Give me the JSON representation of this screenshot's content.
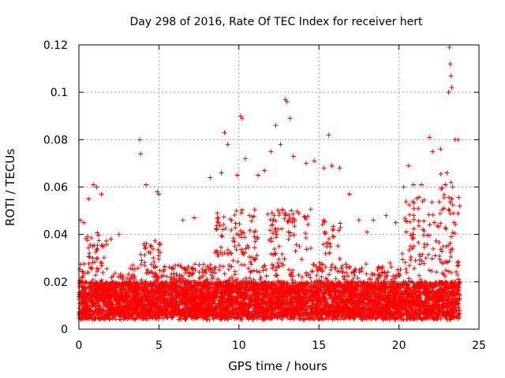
{
  "chart_data": {
    "type": "scatter",
    "title": "Day 298 of 2016, Rate Of TEC Index for receiver hert",
    "xlabel": "GPS time / hours",
    "ylabel": "ROTI / TECUs",
    "xlim": [
      0,
      25
    ],
    "ylim": [
      0,
      0.12
    ],
    "xticks": [
      "0",
      "5",
      "10",
      "15",
      "20",
      "25"
    ],
    "yticks": [
      "0",
      "0.02",
      "0.04",
      "0.06",
      "0.08",
      "0.1",
      "0.12"
    ],
    "grid": true,
    "marker": "+",
    "series": [
      {
        "name": "ROTI",
        "color": "#ff0000",
        "x": [
          0.1,
          0.3,
          0.6,
          0.9,
          1.1,
          1.4,
          3.8,
          3.85,
          4.2,
          4.9,
          5.0,
          8.2,
          8.9,
          9.1,
          9.3,
          9.9,
          10.1,
          10.2,
          10.4,
          11.2,
          11.6,
          12.0,
          12.3,
          12.6,
          12.9,
          13.0,
          13.2,
          13.4,
          14.2,
          14.7,
          15.3,
          15.6,
          15.8,
          16.3,
          16.9,
          17.5,
          18.4,
          19.2,
          20.3,
          20.6,
          20.9,
          21.4,
          21.9,
          22.1,
          22.6,
          22.9,
          23.0,
          23.1,
          23.15,
          23.2,
          23.25,
          23.3,
          23.5,
          23.7,
          2.0,
          2.5,
          6.5,
          7.2,
          18.0,
          19.8
        ],
        "y": [
          0.046,
          0.045,
          0.055,
          0.061,
          0.06,
          0.057,
          0.08,
          0.074,
          0.061,
          0.058,
          0.057,
          0.064,
          0.066,
          0.083,
          0.078,
          0.065,
          0.09,
          0.089,
          0.072,
          0.065,
          0.067,
          0.075,
          0.086,
          0.078,
          0.097,
          0.096,
          0.089,
          0.073,
          0.07,
          0.071,
          0.068,
          0.082,
          0.069,
          0.068,
          0.057,
          0.046,
          0.046,
          0.048,
          0.06,
          0.069,
          0.061,
          0.061,
          0.081,
          0.075,
          0.076,
          0.061,
          0.066,
          0.1,
          0.119,
          0.112,
          0.107,
          0.102,
          0.08,
          0.08,
          0.038,
          0.04,
          0.046,
          0.047,
          0.041,
          0.045
        ]
      }
    ],
    "note": "Dense cloud of ~6000 points, baseline 0.003–0.03 across 0–23.8 h, with excursions up to listed peaks"
  }
}
